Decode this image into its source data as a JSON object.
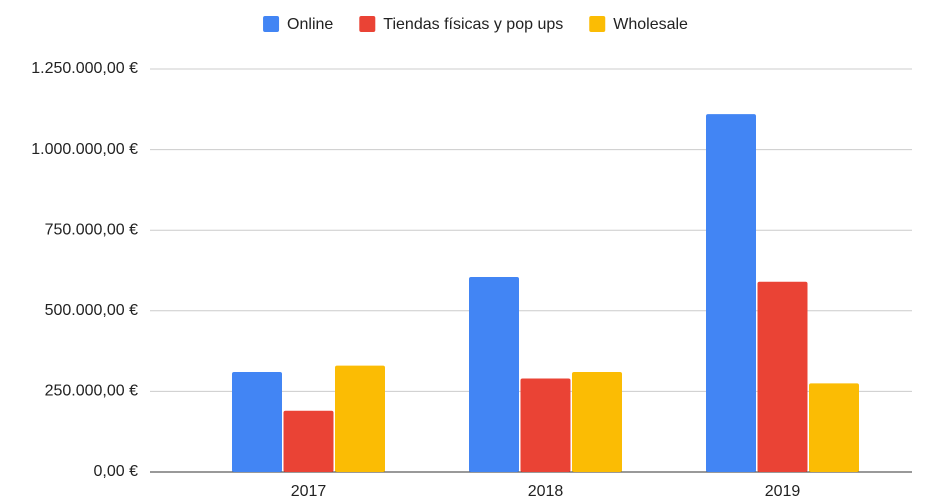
{
  "chart_data": {
    "type": "bar",
    "categories": [
      "2017",
      "2018",
      "2019"
    ],
    "series": [
      {
        "name": "Online",
        "color": "#4285f4",
        "values": [
          310000,
          605000,
          1110000
        ]
      },
      {
        "name": "Tiendas físicas y pop ups",
        "color": "#ea4335",
        "values": [
          190000,
          290000,
          590000
        ]
      },
      {
        "name": "Wholesale",
        "color": "#fbbc04",
        "values": [
          330000,
          310000,
          275000
        ]
      }
    ],
    "ylim": [
      0,
      1250000
    ],
    "yticks": [
      {
        "value": 0,
        "label": "0,00 €"
      },
      {
        "value": 250000,
        "label": "250.000,00 €"
      },
      {
        "value": 500000,
        "label": "500.000,00 €"
      },
      {
        "value": 750000,
        "label": "750.000,00 €"
      },
      {
        "value": 1000000,
        "label": "1.000.000,00 €"
      },
      {
        "value": 1250000,
        "label": "1.250.000,00 €"
      }
    ],
    "grid": true,
    "legend": "top"
  }
}
